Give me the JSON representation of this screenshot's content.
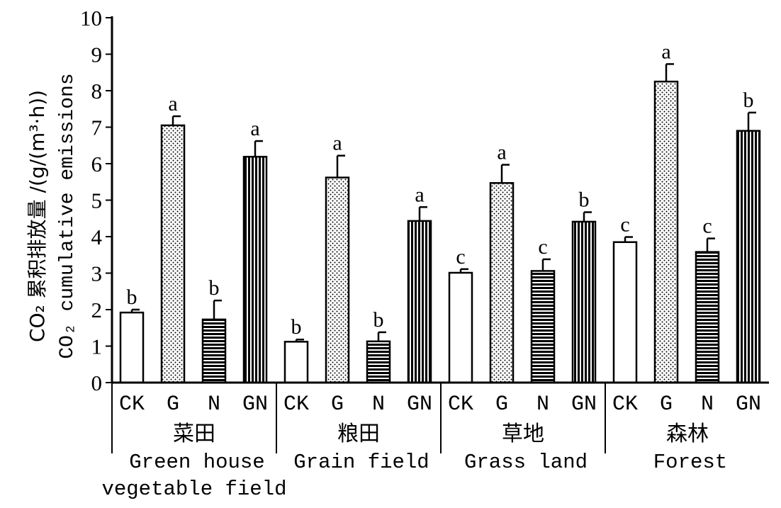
{
  "chart_data": {
    "type": "bar",
    "ylabel_line1": "CO₂ 累积排放量 /(g/(m³·h))",
    "ylabel_line2": "CO₂ cumulative emissions",
    "ylim": [
      0,
      10
    ],
    "yticks": [
      "0",
      "1",
      "2",
      "3",
      "4",
      "5",
      "6",
      "7",
      "8",
      "9",
      "10"
    ],
    "groups": [
      {
        "name_cn": "菜田",
        "name_en_line1": "Green house",
        "name_en_line2": "vegetable field",
        "bars": [
          {
            "treatment": "CK",
            "value": 1.92,
            "error": 0.08,
            "sig": "b",
            "pattern": "open"
          },
          {
            "treatment": "G",
            "value": 7.05,
            "error": 0.25,
            "sig": "a",
            "pattern": "dots"
          },
          {
            "treatment": "N",
            "value": 1.73,
            "error": 0.52,
            "sig": "b",
            "pattern": "hlines"
          },
          {
            "treatment": "GN",
            "value": 6.19,
            "error": 0.43,
            "sig": "a",
            "pattern": "vlines"
          }
        ]
      },
      {
        "name_cn": "粮田",
        "name_en_line1": "Grain field",
        "name_en_line2": "",
        "bars": [
          {
            "treatment": "CK",
            "value": 1.12,
            "error": 0.06,
            "sig": "b",
            "pattern": "open"
          },
          {
            "treatment": "G",
            "value": 5.62,
            "error": 0.6,
            "sig": "a",
            "pattern": "dots"
          },
          {
            "treatment": "N",
            "value": 1.13,
            "error": 0.25,
            "sig": "b",
            "pattern": "hlines"
          },
          {
            "treatment": "GN",
            "value": 4.43,
            "error": 0.38,
            "sig": "a",
            "pattern": "vlines"
          }
        ]
      },
      {
        "name_cn": "草地",
        "name_en_line1": "Grass land",
        "name_en_line2": "",
        "bars": [
          {
            "treatment": "CK",
            "value": 3.01,
            "error": 0.1,
            "sig": "c",
            "pattern": "open"
          },
          {
            "treatment": "G",
            "value": 5.47,
            "error": 0.5,
            "sig": "a",
            "pattern": "dots"
          },
          {
            "treatment": "N",
            "value": 3.06,
            "error": 0.32,
            "sig": "c",
            "pattern": "hlines"
          },
          {
            "treatment": "GN",
            "value": 4.41,
            "error": 0.26,
            "sig": "b",
            "pattern": "vlines"
          }
        ]
      },
      {
        "name_cn": "森林",
        "name_en_line1": "Forest",
        "name_en_line2": "",
        "bars": [
          {
            "treatment": "CK",
            "value": 3.85,
            "error": 0.14,
            "sig": "c",
            "pattern": "open"
          },
          {
            "treatment": "G",
            "value": 8.25,
            "error": 0.48,
            "sig": "a",
            "pattern": "dots"
          },
          {
            "treatment": "N",
            "value": 3.58,
            "error": 0.37,
            "sig": "c",
            "pattern": "hlines"
          },
          {
            "treatment": "GN",
            "value": 6.9,
            "error": 0.5,
            "sig": "b",
            "pattern": "vlines"
          }
        ]
      }
    ]
  }
}
